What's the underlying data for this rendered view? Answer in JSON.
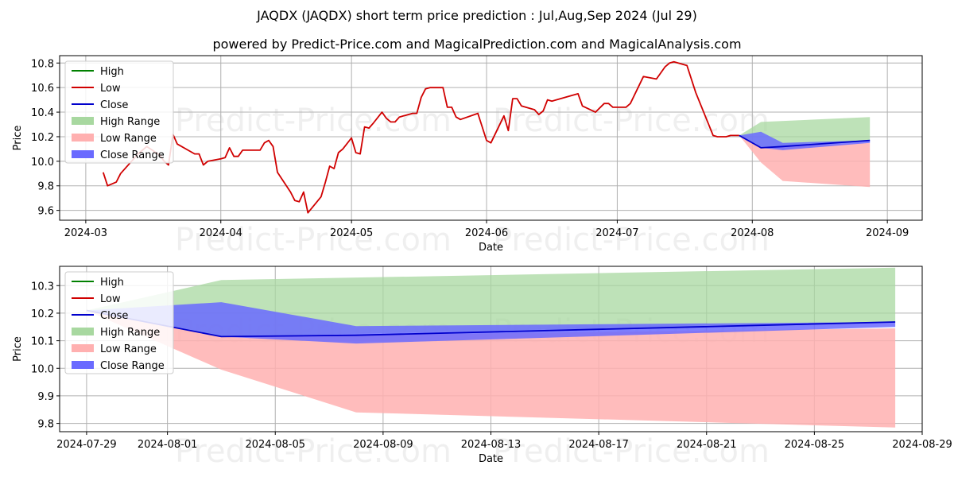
{
  "title": "JAQDX (JAQDX) short term price prediction : Jul,Aug,Sep 2024 (Jul 29)",
  "subtitle": "powered by Predict-Price.com and MagicalPrediction.com and MagicalAnalysis.com",
  "watermark": "Predict-Price.com",
  "colors": {
    "high": "#008000",
    "low": "#d00000",
    "close": "#0000cc",
    "high_range": "#a8d8a0",
    "low_range": "#ffb0b0",
    "close_range": "#6a6aff"
  },
  "chart_data": [
    {
      "type": "line",
      "xlabel": "Date",
      "ylabel": "Price",
      "xlim": [
        "2024-02-24",
        "2024-09-09"
      ],
      "ylim": [
        9.52,
        10.86
      ],
      "xticks": [
        "2024-03",
        "2024-04",
        "2024-05",
        "2024-06",
        "2024-07",
        "2024-08",
        "2024-09"
      ],
      "xtick_dates": [
        "2024-03-01",
        "2024-04-01",
        "2024-05-01",
        "2024-06-01",
        "2024-07-01",
        "2024-08-01",
        "2024-09-01"
      ],
      "yticks": [
        "9.6",
        "9.8",
        "10.0",
        "10.2",
        "10.4",
        "10.6",
        "10.8"
      ],
      "legend": [
        "High",
        "Low",
        "Close",
        "High Range",
        "Low Range",
        "Close Range"
      ],
      "legend_position": "top-left",
      "grid": true,
      "series": [
        {
          "name": "Low",
          "points": [
            [
              "2024-03-05",
              9.91
            ],
            [
              "2024-03-06",
              9.8
            ],
            [
              "2024-03-08",
              9.83
            ],
            [
              "2024-03-09",
              9.9
            ],
            [
              "2024-03-12",
              10.02
            ],
            [
              "2024-03-13",
              10.06
            ],
            [
              "2024-03-15",
              10.12
            ],
            [
              "2024-03-18",
              10.05
            ],
            [
              "2024-03-19",
              10.0
            ],
            [
              "2024-03-20",
              9.97
            ],
            [
              "2024-03-21",
              10.22
            ],
            [
              "2024-03-22",
              10.14
            ],
            [
              "2024-03-25",
              10.08
            ],
            [
              "2024-03-26",
              10.06
            ],
            [
              "2024-03-27",
              10.06
            ],
            [
              "2024-03-28",
              9.97
            ],
            [
              "2024-03-29",
              10.0
            ],
            [
              "2024-04-01",
              10.02
            ],
            [
              "2024-04-02",
              10.03
            ],
            [
              "2024-04-03",
              10.11
            ],
            [
              "2024-04-04",
              10.04
            ],
            [
              "2024-04-05",
              10.04
            ],
            [
              "2024-04-06",
              10.09
            ],
            [
              "2024-04-09",
              10.09
            ],
            [
              "2024-04-10",
              10.09
            ],
            [
              "2024-04-11",
              10.15
            ],
            [
              "2024-04-12",
              10.17
            ],
            [
              "2024-04-13",
              10.12
            ],
            [
              "2024-04-14",
              9.91
            ],
            [
              "2024-04-17",
              9.75
            ],
            [
              "2024-04-18",
              9.68
            ],
            [
              "2024-04-19",
              9.67
            ],
            [
              "2024-04-20",
              9.75
            ],
            [
              "2024-04-21",
              9.58
            ],
            [
              "2024-04-24",
              9.71
            ],
            [
              "2024-04-25",
              9.83
            ],
            [
              "2024-04-26",
              9.96
            ],
            [
              "2024-04-27",
              9.94
            ],
            [
              "2024-04-28",
              10.07
            ],
            [
              "2024-04-29",
              10.1
            ],
            [
              "2024-05-01",
              10.19
            ],
            [
              "2024-05-02",
              10.07
            ],
            [
              "2024-05-03",
              10.06
            ],
            [
              "2024-05-04",
              10.28
            ],
            [
              "2024-05-05",
              10.27
            ],
            [
              "2024-05-06",
              10.31
            ],
            [
              "2024-05-08",
              10.4
            ],
            [
              "2024-05-09",
              10.35
            ],
            [
              "2024-05-10",
              10.32
            ],
            [
              "2024-05-11",
              10.32
            ],
            [
              "2024-05-12",
              10.36
            ],
            [
              "2024-05-15",
              10.39
            ],
            [
              "2024-05-16",
              10.39
            ],
            [
              "2024-05-17",
              10.52
            ],
            [
              "2024-05-18",
              10.59
            ],
            [
              "2024-05-19",
              10.6
            ],
            [
              "2024-05-22",
              10.6
            ],
            [
              "2024-05-23",
              10.44
            ],
            [
              "2024-05-24",
              10.44
            ],
            [
              "2024-05-25",
              10.36
            ],
            [
              "2024-05-26",
              10.34
            ],
            [
              "2024-05-30",
              10.39
            ],
            [
              "2024-06-01",
              10.17
            ],
            [
              "2024-06-02",
              10.15
            ],
            [
              "2024-06-05",
              10.37
            ],
            [
              "2024-06-06",
              10.25
            ],
            [
              "2024-06-07",
              10.51
            ],
            [
              "2024-06-08",
              10.51
            ],
            [
              "2024-06-09",
              10.45
            ],
            [
              "2024-06-12",
              10.42
            ],
            [
              "2024-06-13",
              10.38
            ],
            [
              "2024-06-14",
              10.41
            ],
            [
              "2024-06-15",
              10.5
            ],
            [
              "2024-06-16",
              10.49
            ],
            [
              "2024-06-19",
              10.52
            ],
            [
              "2024-06-22",
              10.55
            ],
            [
              "2024-06-23",
              10.45
            ],
            [
              "2024-06-26",
              10.4
            ],
            [
              "2024-06-28",
              10.47
            ],
            [
              "2024-06-29",
              10.47
            ],
            [
              "2024-06-30",
              10.44
            ],
            [
              "2024-07-03",
              10.44
            ],
            [
              "2024-07-04",
              10.47
            ],
            [
              "2024-07-07",
              10.69
            ],
            [
              "2024-07-10",
              10.67
            ],
            [
              "2024-07-12",
              10.77
            ],
            [
              "2024-07-13",
              10.8
            ],
            [
              "2024-07-14",
              10.81
            ],
            [
              "2024-07-17",
              10.78
            ],
            [
              "2024-07-19",
              10.56
            ],
            [
              "2024-07-23",
              10.21
            ],
            [
              "2024-07-24",
              10.2
            ],
            [
              "2024-07-26",
              10.2
            ],
            [
              "2024-07-27",
              10.21
            ],
            [
              "2024-07-29",
              10.21
            ]
          ]
        },
        {
          "name": "Close",
          "points": [
            [
              "2024-07-29",
              10.21
            ],
            [
              "2024-08-03",
              10.11
            ],
            [
              "2024-08-08",
              10.12
            ],
            [
              "2024-08-28",
              10.17
            ]
          ]
        }
      ],
      "bands": [
        {
          "name": "High Range",
          "upper": [
            [
              "2024-07-29",
              10.21
            ],
            [
              "2024-08-03",
              10.32
            ],
            [
              "2024-08-28",
              10.36
            ]
          ],
          "lower": [
            [
              "2024-07-29",
              10.21
            ],
            [
              "2024-08-03",
              10.11
            ],
            [
              "2024-08-28",
              10.17
            ]
          ]
        },
        {
          "name": "Low Range",
          "upper": [
            [
              "2024-07-29",
              10.21
            ],
            [
              "2024-08-03",
              10.11
            ],
            [
              "2024-08-28",
              10.15
            ]
          ],
          "lower": [
            [
              "2024-07-29",
              10.21
            ],
            [
              "2024-08-03",
              9.99
            ],
            [
              "2024-08-08",
              9.84
            ],
            [
              "2024-08-28",
              9.79
            ]
          ]
        },
        {
          "name": "Close Range",
          "upper": [
            [
              "2024-07-29",
              10.21
            ],
            [
              "2024-08-03",
              10.24
            ],
            [
              "2024-08-08",
              10.15
            ],
            [
              "2024-08-28",
              10.17
            ]
          ],
          "lower": [
            [
              "2024-07-29",
              10.21
            ],
            [
              "2024-08-03",
              10.11
            ],
            [
              "2024-08-08",
              10.09
            ],
            [
              "2024-08-28",
              10.15
            ]
          ]
        }
      ]
    },
    {
      "type": "line",
      "xlabel": "Date",
      "ylabel": "Price",
      "xlim": [
        "2024-07-28",
        "2024-08-29"
      ],
      "ylim": [
        9.77,
        10.37
      ],
      "xticks": [
        "2024-07-29",
        "2024-08-01",
        "2024-08-05",
        "2024-08-09",
        "2024-08-13",
        "2024-08-17",
        "2024-08-21",
        "2024-08-25",
        "2024-08-29"
      ],
      "yticks": [
        "9.8",
        "9.9",
        "10.0",
        "10.1",
        "10.2",
        "10.3"
      ],
      "legend": [
        "High",
        "Low",
        "Close",
        "High Range",
        "Low Range",
        "Close Range"
      ],
      "legend_position": "top-left",
      "grid": true,
      "series": [
        {
          "name": "Close",
          "points": [
            [
              "2024-07-29",
              10.21
            ],
            [
              "2024-08-03",
              10.115
            ],
            [
              "2024-08-08",
              10.12
            ],
            [
              "2024-08-28",
              10.168
            ]
          ]
        }
      ],
      "bands": [
        {
          "name": "High Range",
          "upper": [
            [
              "2024-07-29",
              10.21
            ],
            [
              "2024-08-03",
              10.32
            ],
            [
              "2024-08-28",
              10.365
            ]
          ],
          "lower": [
            [
              "2024-07-29",
              10.21
            ],
            [
              "2024-08-03",
              10.115
            ],
            [
              "2024-08-28",
              10.168
            ]
          ]
        },
        {
          "name": "Low Range",
          "upper": [
            [
              "2024-07-29",
              10.21
            ],
            [
              "2024-08-03",
              10.115
            ],
            [
              "2024-08-28",
              10.145
            ]
          ],
          "lower": [
            [
              "2024-07-29",
              10.21
            ],
            [
              "2024-08-03",
              9.995
            ],
            [
              "2024-08-08",
              9.84
            ],
            [
              "2024-08-28",
              9.785
            ]
          ]
        },
        {
          "name": "Close Range",
          "upper": [
            [
              "2024-07-29",
              10.21
            ],
            [
              "2024-08-03",
              10.24
            ],
            [
              "2024-08-08",
              10.153
            ],
            [
              "2024-08-28",
              10.168
            ]
          ],
          "lower": [
            [
              "2024-07-29",
              10.21
            ],
            [
              "2024-08-03",
              10.115
            ],
            [
              "2024-08-08",
              10.09
            ],
            [
              "2024-08-28",
              10.15
            ]
          ]
        }
      ]
    }
  ]
}
